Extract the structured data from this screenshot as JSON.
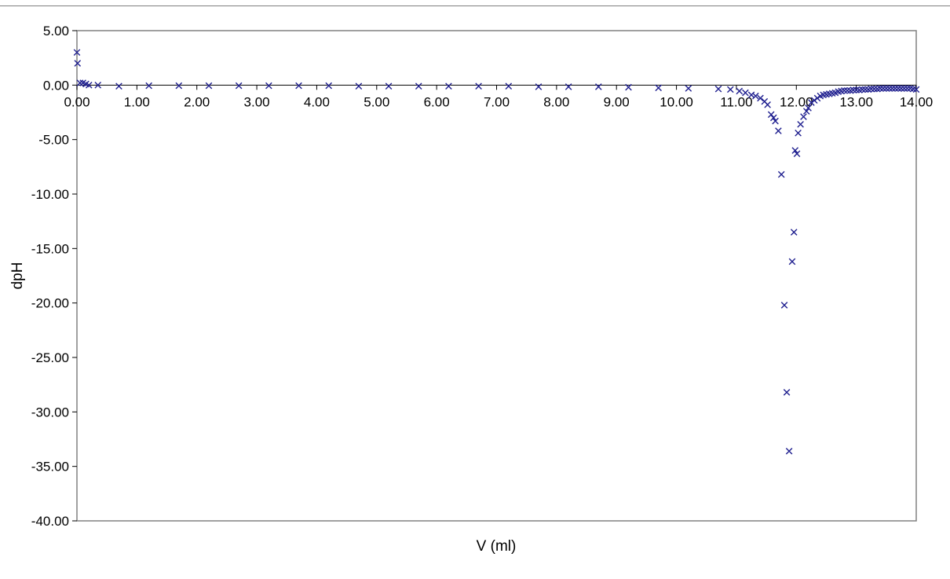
{
  "chart_data": {
    "type": "scatter",
    "title": "",
    "xlabel": "V (ml)",
    "ylabel": "dpH",
    "xlim": [
      0,
      14
    ],
    "ylim": [
      -40,
      5
    ],
    "x_ticks": [
      "0.00",
      "1.00",
      "2.00",
      "3.00",
      "4.00",
      "5.00",
      "6.00",
      "7.00",
      "8.00",
      "9.00",
      "10.00",
      "11.00",
      "12.00",
      "13.00",
      "14.00"
    ],
    "y_ticks": [
      "5.00",
      "0.00",
      "-5.00",
      "-10.00",
      "-15.00",
      "-20.00",
      "-25.00",
      "-30.00",
      "-35.00",
      "-40.00"
    ],
    "grid": false,
    "legend": "none",
    "marker": "x",
    "marker_color": "#1f1f8f",
    "series": [
      {
        "x": [
          0.0,
          0.01,
          0.05,
          0.1,
          0.15,
          0.2,
          0.35,
          0.7,
          1.2,
          1.7,
          2.2,
          2.7,
          3.2,
          3.7,
          4.2,
          4.7,
          5.2,
          5.7,
          6.2,
          6.7,
          7.2,
          7.7,
          8.2,
          8.7,
          9.2,
          9.7,
          10.2,
          10.7,
          10.9,
          11.05,
          11.15,
          11.25,
          11.32,
          11.4,
          11.47,
          11.52,
          11.58,
          11.62,
          11.65,
          11.7,
          11.75,
          11.8,
          11.84,
          11.88,
          11.93,
          11.96,
          11.98,
          12.01,
          12.03,
          12.07,
          12.12,
          12.17,
          12.2,
          12.25,
          12.3,
          12.35,
          12.4,
          12.45,
          12.5,
          12.55,
          12.6,
          12.65,
          12.7,
          12.75,
          12.8,
          12.85,
          12.9,
          12.95,
          13.0,
          13.05,
          13.1,
          13.15,
          13.2,
          13.25,
          13.3,
          13.35,
          13.4,
          13.45,
          13.5,
          13.55,
          13.6,
          13.65,
          13.7,
          13.75,
          13.8,
          13.85,
          13.9,
          13.95,
          14.0
        ],
        "y": [
          3.0,
          2.0,
          0.2,
          0.2,
          0.1,
          0.0,
          0.0,
          -0.1,
          -0.05,
          -0.05,
          -0.05,
          -0.05,
          -0.05,
          -0.05,
          -0.05,
          -0.1,
          -0.1,
          -0.1,
          -0.1,
          -0.1,
          -0.1,
          -0.15,
          -0.15,
          -0.15,
          -0.2,
          -0.25,
          -0.3,
          -0.35,
          -0.4,
          -0.55,
          -0.7,
          -0.9,
          -1.0,
          -1.2,
          -1.5,
          -1.8,
          -2.7,
          -3.0,
          -3.3,
          -4.2,
          -8.2,
          -20.2,
          -28.2,
          -33.6,
          -16.2,
          -13.5,
          -6.0,
          -6.3,
          -4.4,
          -3.6,
          -2.9,
          -2.4,
          -2.1,
          -1.6,
          -1.4,
          -1.2,
          -1.0,
          -0.9,
          -0.85,
          -0.8,
          -0.75,
          -0.7,
          -0.6,
          -0.55,
          -0.5,
          -0.5,
          -0.5,
          -0.45,
          -0.45,
          -0.45,
          -0.4,
          -0.4,
          -0.4,
          -0.35,
          -0.35,
          -0.35,
          -0.3,
          -0.3,
          -0.3,
          -0.3,
          -0.3,
          -0.3,
          -0.3,
          -0.3,
          -0.3,
          -0.3,
          -0.3,
          -0.35,
          -0.4
        ]
      }
    ]
  }
}
